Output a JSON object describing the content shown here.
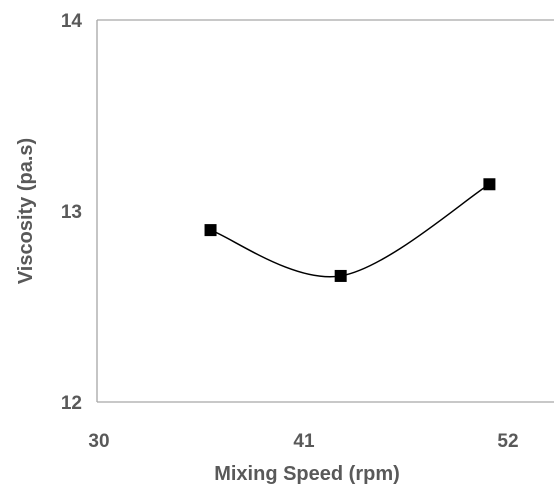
{
  "chart_data": {
    "type": "line",
    "title": "",
    "xlabel": "Mixing Speed (rpm)",
    "ylabel": "Viscosity  (pa.s)",
    "xlim": [
      30,
      52
    ],
    "ylim": [
      12,
      14
    ],
    "x_ticks": [
      "30",
      "41",
      "52"
    ],
    "y_ticks": [
      "12",
      "13",
      "14"
    ],
    "grid": false,
    "legend": "none",
    "series": [
      {
        "marker": "square",
        "smooth": true,
        "color": "#000000",
        "points": [
          {
            "x": 36,
            "y": 12.9
          },
          {
            "x": 43,
            "y": 12.66
          },
          {
            "x": 51,
            "y": 13.14
          }
        ]
      }
    ]
  }
}
